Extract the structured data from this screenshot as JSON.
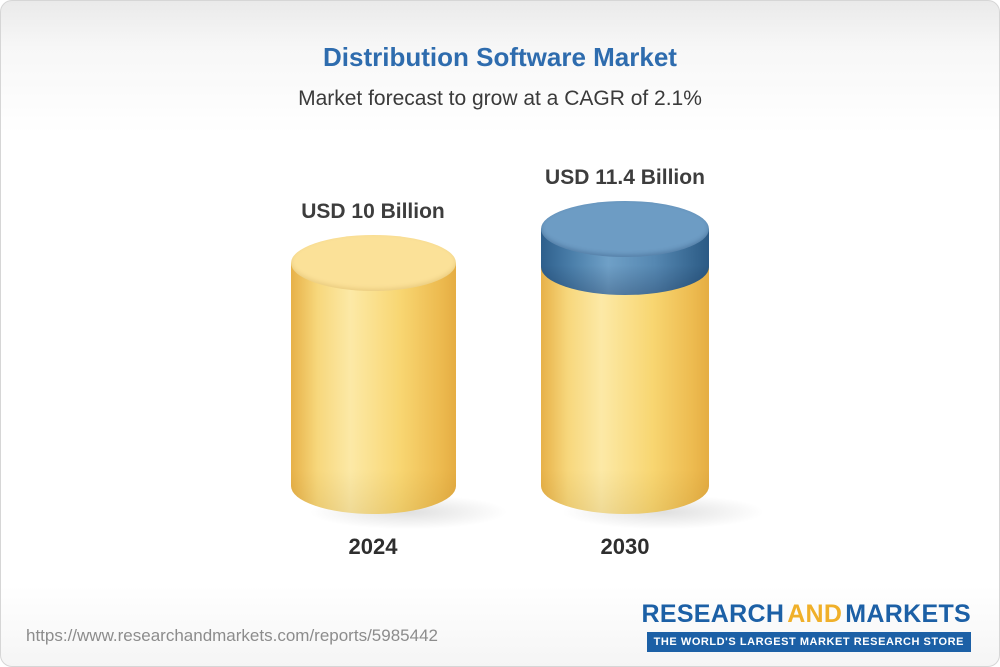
{
  "header": {
    "title": "Distribution Software Market",
    "subtitle": "Market forecast to grow at a CAGR of 2.1%"
  },
  "chart_data": {
    "type": "bar",
    "title": "Distribution Software Market",
    "subtitle": "Market forecast to grow at a CAGR of 2.1%",
    "cagr": "2.1%",
    "unit": "USD Billion",
    "categories": [
      "2024",
      "2030"
    ],
    "values": [
      10,
      11.4
    ],
    "value_labels": [
      "USD 10 Billion",
      "USD 11.4 Billion"
    ],
    "colors": {
      "bar_yellow": "#f5cd67",
      "increment_blue": "#4a7ea9",
      "title_blue": "#2e6cae"
    },
    "legend_position": "none",
    "grid": false
  },
  "footer": {
    "url": "https://www.researchandmarkets.com/reports/5985442",
    "logo": {
      "word1": "RESEARCH",
      "word2": "AND",
      "word3": "MARKETS",
      "tagline": "THE WORLD'S LARGEST MARKET RESEARCH STORE"
    }
  }
}
